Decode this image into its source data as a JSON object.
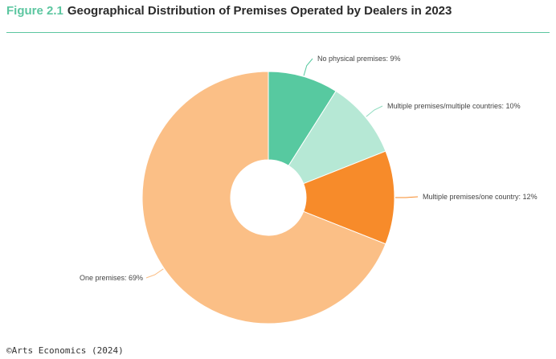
{
  "header": {
    "figure_label": "Figure 2.1",
    "title": "Geographical Distribution of Premises Operated by Dealers in 2023"
  },
  "footer": {
    "source": "©Arts Economics (2024)"
  },
  "colors": {
    "accent": "#5cc6a0",
    "text": "#2b2b2b"
  },
  "chart_data": {
    "type": "pie",
    "donut": true,
    "title": "Geographical Distribution of Premises Operated by Dealers in 2023",
    "slices": [
      {
        "label": "No physical premises: 9%",
        "value": 9,
        "color": "#57c9a0"
      },
      {
        "label": "Multiple premises/multiple countries: 10%",
        "value": 10,
        "color": "#b6e8d5"
      },
      {
        "label": "Multiple premises/one country: 12%",
        "value": 12,
        "color": "#f78b2a"
      },
      {
        "label": "One premises: 69%",
        "value": 69,
        "color": "#fbbf86"
      }
    ]
  }
}
